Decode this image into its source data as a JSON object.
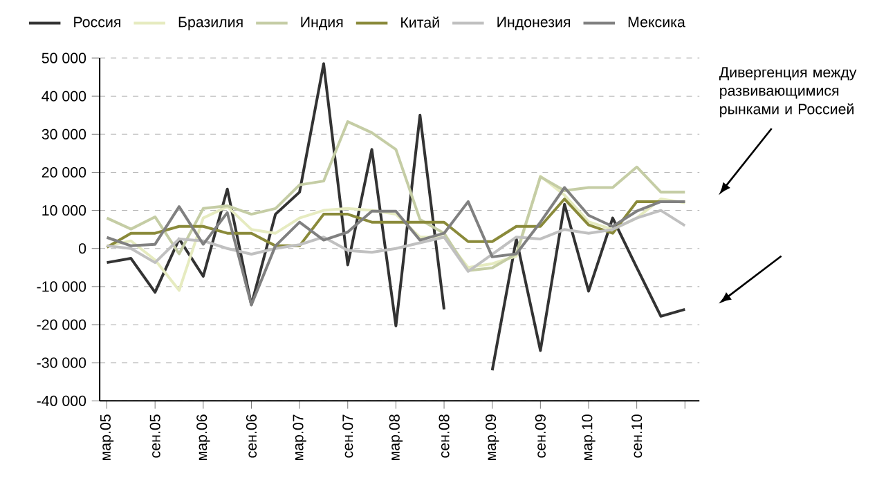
{
  "chart_data": {
    "type": "line",
    "categories": [
      "мар.05",
      null,
      "сен.05",
      null,
      "мар.06",
      null,
      "сен.06",
      null,
      "мар.07",
      null,
      "сен.07",
      null,
      "мар.08",
      null,
      "сен.08",
      null,
      "мар.09",
      null,
      "сен.09",
      null,
      "мар.10",
      null,
      "сен.10",
      null,
      null
    ],
    "series": [
      {
        "name": "Россия",
        "color": "#333333",
        "values": [
          -3700,
          -2600,
          -11500,
          2500,
          -7300,
          15600,
          -14800,
          9000,
          14800,
          48500,
          -4300,
          26000,
          -20300,
          35000,
          -16000,
          null,
          -32000,
          2500,
          -26800,
          11600,
          -11200,
          8000,
          -5000,
          -17800,
          -16000
        ]
      },
      {
        "name": "Бразилия",
        "color": "#e6ebc0",
        "values": [
          700,
          2000,
          -3000,
          -11000,
          8000,
          11000,
          5000,
          4000,
          8000,
          10000,
          10500,
          10000,
          9000,
          3000,
          3000,
          -5000,
          -4000,
          -2000,
          19000,
          14000,
          7000,
          5000,
          8000,
          13000,
          12000
        ]
      },
      {
        "name": "Индия",
        "color": "#c5cda5",
        "values": [
          8000,
          5100,
          8300,
          -1400,
          10500,
          11200,
          9000,
          10500,
          16700,
          17700,
          33300,
          30400,
          26000,
          7600,
          4000,
          -5800,
          -5100,
          -1400,
          18800,
          15200,
          16000,
          16000,
          21400,
          14800,
          14800
        ]
      },
      {
        "name": "Китай",
        "color": "#8a8a3a",
        "values": [
          300,
          4000,
          4000,
          5800,
          5800,
          4000,
          4000,
          700,
          700,
          9000,
          9000,
          6900,
          6900,
          6900,
          6900,
          1800,
          1800,
          5800,
          5800,
          13000,
          6200,
          4000,
          12300,
          12300,
          12300
        ]
      },
      {
        "name": "Индонезия",
        "color": "#c0c0c0",
        "values": [
          700,
          0,
          -3700,
          2500,
          2000,
          0,
          -1500,
          0,
          1000,
          3000,
          -500,
          -1000,
          0,
          1500,
          3000,
          -6000,
          -1500,
          3000,
          2500,
          5000,
          4000,
          5000,
          8000,
          10000,
          6000
        ]
      },
      {
        "name": "Мексика",
        "color": "#808080",
        "values": [
          2900,
          700,
          1100,
          11000,
          1100,
          9400,
          -14800,
          700,
          6900,
          2200,
          4300,
          9800,
          9800,
          2200,
          4000,
          12300,
          -2200,
          -1400,
          6900,
          16000,
          8700,
          5800,
          9800,
          12300,
          12300
        ]
      }
    ],
    "ylim": [
      -40000,
      50000
    ],
    "yticks": [
      {
        "value": -40000,
        "label": "-40 000"
      },
      {
        "value": -30000,
        "label": "-30 000"
      },
      {
        "value": -20000,
        "label": "-20 000"
      },
      {
        "value": -10000,
        "label": "-10 000"
      },
      0,
      {
        "value": 10000,
        "label": "10 000"
      },
      {
        "value": 20000,
        "label": "20 000"
      },
      {
        "value": 30000,
        "label": "30 000"
      },
      {
        "value": 40000,
        "label": "40 000"
      },
      {
        "value": 50000,
        "label": "50 000"
      }
    ],
    "grid": "y",
    "legend": "top",
    "annotations": [
      "Дивергенция между развивающимися рынками и Россией"
    ]
  }
}
